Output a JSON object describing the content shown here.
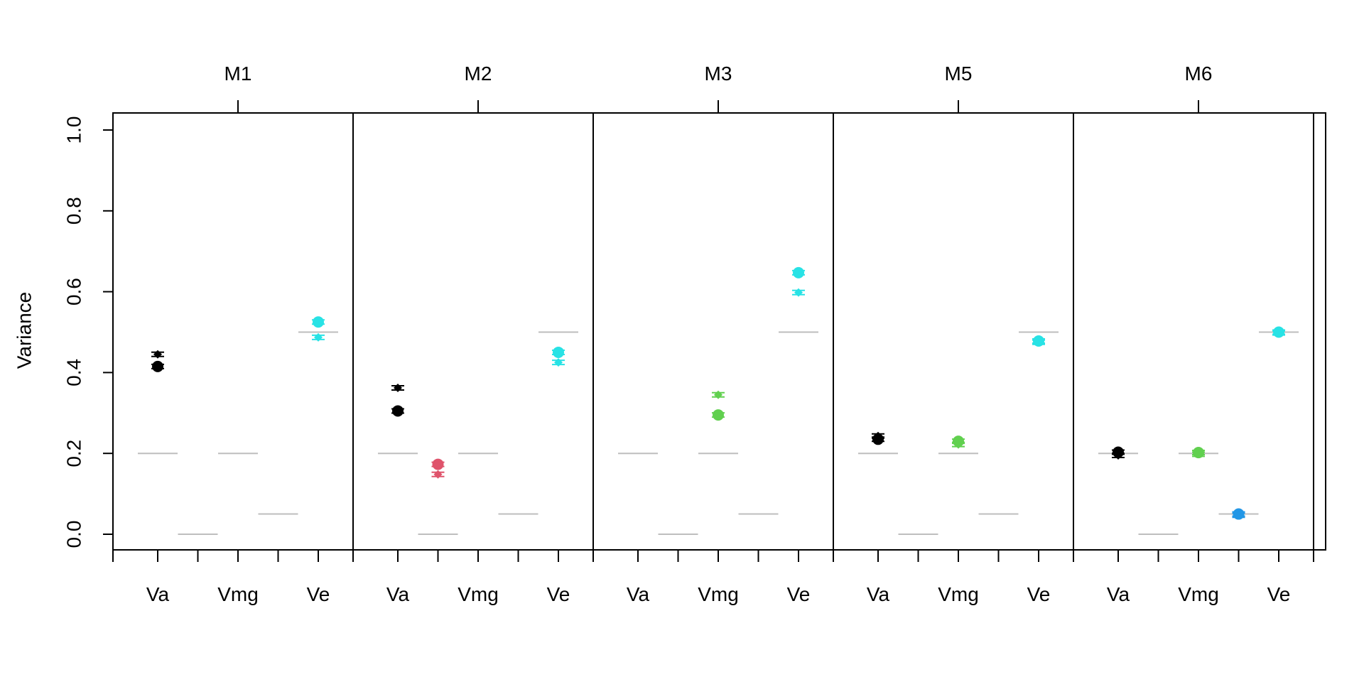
{
  "chart_data": {
    "type": "scatter",
    "ylabel": "Variance",
    "ylim": [
      0,
      1
    ],
    "y_ticks": [
      "0.0",
      "0.2",
      "0.4",
      "0.6",
      "0.8",
      "1.0"
    ],
    "panels": [
      "M1",
      "M2",
      "M3",
      "M5",
      "M6"
    ],
    "x_categories": [
      "Va",
      "",
      "Vmg",
      "",
      "Ve"
    ],
    "x_tick_labels": [
      {
        "slot": 0,
        "label": "Va"
      },
      {
        "slot": 2,
        "label": "Vmg"
      },
      {
        "slot": 4,
        "label": "Ve"
      }
    ],
    "colors": {
      "black": "#000000",
      "red": "#DF536B",
      "green": "#61D04F",
      "cyan": "#28E2E5",
      "blue": "#2297E6",
      "reference": "#BEBEBE",
      "axis": "#000000"
    },
    "true_values": [
      0.2,
      0.0,
      0.2,
      0.05,
      0.5
    ],
    "series": [
      {
        "marker": "circle",
        "points": [
          {
            "panel": "M1",
            "slot": 0,
            "value": 0.415,
            "color": "black"
          },
          {
            "panel": "M1",
            "slot": 4,
            "value": 0.525,
            "color": "cyan"
          },
          {
            "panel": "M2",
            "slot": 0,
            "value": 0.305,
            "color": "black"
          },
          {
            "panel": "M2",
            "slot": 1,
            "value": 0.173,
            "color": "red"
          },
          {
            "panel": "M2",
            "slot": 4,
            "value": 0.45,
            "color": "cyan"
          },
          {
            "panel": "M3",
            "slot": 2,
            "value": 0.295,
            "color": "green"
          },
          {
            "panel": "M3",
            "slot": 4,
            "value": 0.647,
            "color": "cyan"
          },
          {
            "panel": "M5",
            "slot": 0,
            "value": 0.235,
            "color": "black"
          },
          {
            "panel": "M5",
            "slot": 2,
            "value": 0.23,
            "color": "green"
          },
          {
            "panel": "M5",
            "slot": 4,
            "value": 0.478,
            "color": "cyan"
          },
          {
            "panel": "M6",
            "slot": 0,
            "value": 0.203,
            "color": "black"
          },
          {
            "panel": "M6",
            "slot": 2,
            "value": 0.202,
            "color": "green"
          },
          {
            "panel": "M6",
            "slot": 3,
            "value": 0.05,
            "color": "blue"
          },
          {
            "panel": "M6",
            "slot": 4,
            "value": 0.5,
            "color": "cyan"
          }
        ]
      },
      {
        "marker": "diamond",
        "points": [
          {
            "panel": "M1",
            "slot": 0,
            "value": 0.445,
            "color": "black"
          },
          {
            "panel": "M1",
            "slot": 4,
            "value": 0.487,
            "color": "cyan"
          },
          {
            "panel": "M2",
            "slot": 0,
            "value": 0.362,
            "color": "black"
          },
          {
            "panel": "M2",
            "slot": 1,
            "value": 0.148,
            "color": "red"
          },
          {
            "panel": "M2",
            "slot": 4,
            "value": 0.425,
            "color": "cyan"
          },
          {
            "panel": "M3",
            "slot": 2,
            "value": 0.345,
            "color": "green"
          },
          {
            "panel": "M3",
            "slot": 4,
            "value": 0.598,
            "color": "cyan"
          },
          {
            "panel": "M5",
            "slot": 0,
            "value": 0.243,
            "color": "black"
          },
          {
            "panel": "M5",
            "slot": 2,
            "value": 0.222,
            "color": "green"
          },
          {
            "panel": "M5",
            "slot": 4,
            "value": 0.475,
            "color": "cyan"
          },
          {
            "panel": "M6",
            "slot": 0,
            "value": 0.195,
            "color": "black"
          },
          {
            "panel": "M6",
            "slot": 2,
            "value": 0.198,
            "color": "green"
          },
          {
            "panel": "M6",
            "slot": 3,
            "value": 0.047,
            "color": "blue"
          },
          {
            "panel": "M6",
            "slot": 4,
            "value": 0.498,
            "color": "cyan"
          }
        ]
      }
    ]
  }
}
